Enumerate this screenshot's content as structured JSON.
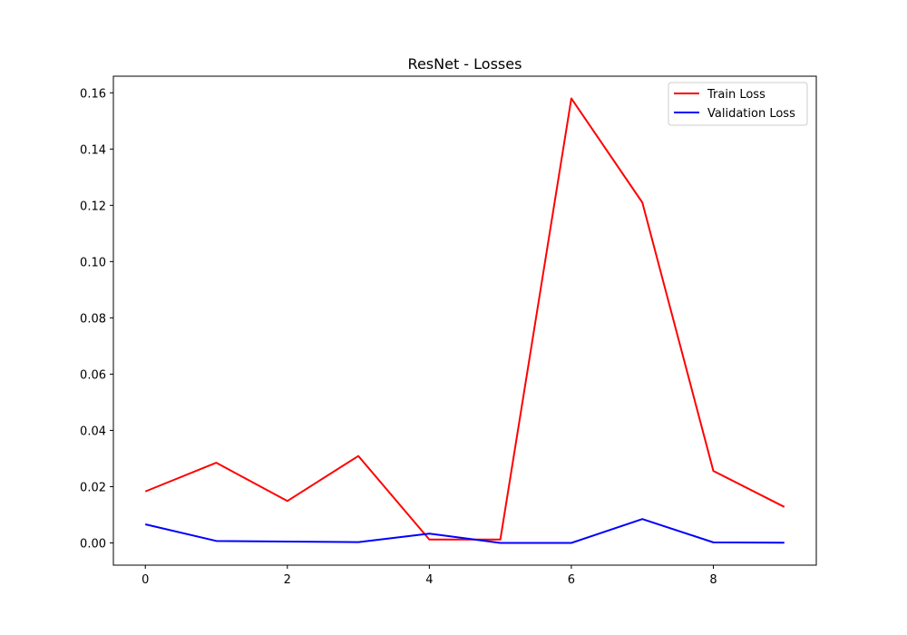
{
  "chart_data": {
    "type": "line",
    "title": "ResNet - Losses",
    "xlabel": "",
    "ylabel": "",
    "x": [
      0,
      1,
      2,
      3,
      4,
      5,
      6,
      7,
      8,
      9
    ],
    "xlim": [
      -0.45,
      9.45
    ],
    "ylim": [
      -0.0079,
      0.1659
    ],
    "xticks": [
      0,
      2,
      4,
      6,
      8
    ],
    "xtick_labels": [
      "0",
      "2",
      "4",
      "6",
      "8"
    ],
    "yticks": [
      0.0,
      0.02,
      0.04,
      0.06,
      0.08,
      0.1,
      0.12,
      0.14,
      0.16
    ],
    "ytick_labels": [
      "0.00",
      "0.02",
      "0.04",
      "0.06",
      "0.08",
      "0.10",
      "0.12",
      "0.14",
      "0.16"
    ],
    "grid": false,
    "legend_position": "top-right",
    "series": [
      {
        "name": "Train Loss",
        "color": "#ff0000",
        "values": [
          0.0183,
          0.0285,
          0.0149,
          0.0309,
          0.0012,
          0.0012,
          0.158,
          0.121,
          0.0256,
          0.0128
        ]
      },
      {
        "name": "Validation Loss",
        "color": "#0000ff",
        "values": [
          0.0066,
          0.0007,
          0.0005,
          0.0003,
          0.0033,
          0.0,
          0.0,
          0.0085,
          0.0002,
          0.0001
        ]
      }
    ]
  }
}
